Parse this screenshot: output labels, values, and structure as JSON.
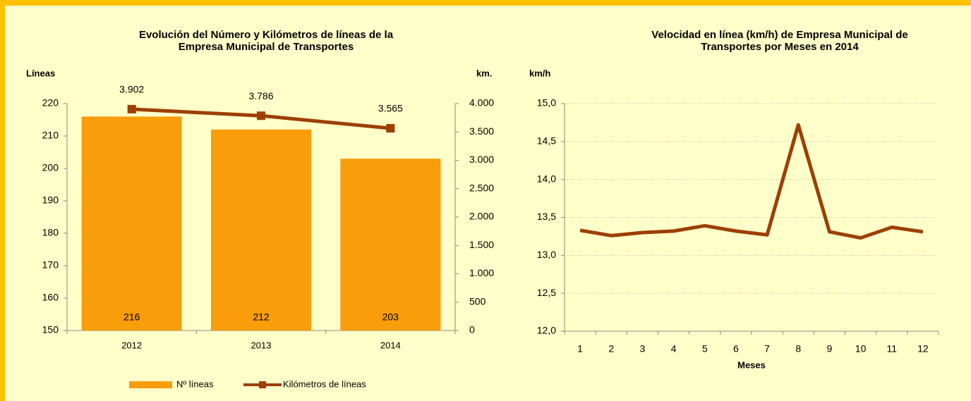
{
  "chart_data": [
    {
      "type": "bar",
      "title": [
        "Evolución del Número y  Kilómetros de líneas de la",
        "Empresa Municipal de Transportes"
      ],
      "y_label": "Líneas",
      "y2_label": "km.",
      "categories": [
        "2012",
        "2013",
        "2014"
      ],
      "series": [
        {
          "name": "Nº líneas",
          "type": "bar",
          "color": "#F99D0A",
          "values": [
            216,
            212,
            203
          ]
        },
        {
          "name": "Kilómetros de líneas",
          "type": "line",
          "axis": "y2",
          "color": "#9C3F00",
          "values": [
            3902,
            3786,
            3565
          ],
          "value_labels": [
            "3.902",
            "3.786",
            "3.565"
          ]
        }
      ],
      "ylim": [
        150,
        220
      ],
      "yticks": [
        150,
        160,
        170,
        180,
        190,
        200,
        210,
        220
      ],
      "y2lim": [
        0,
        4000
      ],
      "y2ticks": [
        0,
        500,
        {
          "value": 1000,
          "label": "1.000"
        },
        {
          "value": 1500,
          "label": "1.500"
        },
        {
          "value": 2000,
          "label": "2.000"
        },
        {
          "value": 2500,
          "label": "2.500"
        },
        {
          "value": 3000,
          "label": "3.000"
        },
        {
          "value": 3500,
          "label": "3.500"
        },
        {
          "value": 4000,
          "label": "4.000"
        }
      ],
      "legend": "bottom",
      "grid": false
    },
    {
      "type": "line",
      "title": [
        "Velocidad en línea (km/h) de Empresa Municipal de",
        "Transportes por Meses en 2014"
      ],
      "y_label": "km/h",
      "x_label": "Meses",
      "categories": [
        "1",
        "2",
        "3",
        "4",
        "5",
        "6",
        "7",
        "8",
        "9",
        "10",
        "11",
        "12"
      ],
      "values": [
        13.33,
        13.26,
        13.3,
        13.32,
        13.39,
        13.32,
        13.27,
        14.72,
        13.31,
        13.23,
        13.37,
        13.31
      ],
      "color": "#9C3F00",
      "ylim": [
        12,
        15
      ],
      "yticks": [
        {
          "value": 12,
          "label": "12,0"
        },
        {
          "value": 12.5,
          "label": "12,5"
        },
        {
          "value": 13,
          "label": "13,0"
        },
        {
          "value": 13.5,
          "label": "13,5"
        },
        {
          "value": 14,
          "label": "14,0"
        },
        {
          "value": 14.5,
          "label": "14,5"
        },
        {
          "value": 15,
          "label": "15,0"
        }
      ],
      "grid": true
    }
  ]
}
